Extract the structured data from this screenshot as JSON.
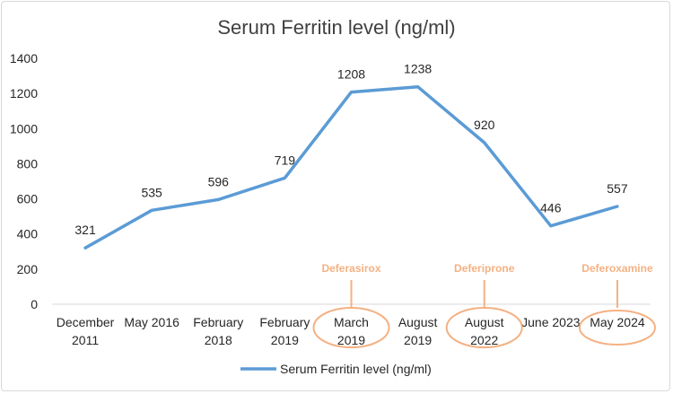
{
  "chart_data": {
    "type": "line",
    "title": "Serum Ferritin level (ng/ml)",
    "categories": [
      [
        "December",
        "2011"
      ],
      [
        "May 2016"
      ],
      [
        "February",
        "2018"
      ],
      [
        "February",
        "2019"
      ],
      [
        "March",
        "2019"
      ],
      [
        "August",
        "2019"
      ],
      [
        "August",
        "2022"
      ],
      [
        "June 2023"
      ],
      [
        "May 2024"
      ]
    ],
    "series": [
      {
        "name": "Serum Ferritin level (ng/ml)",
        "values": [
          321,
          535,
          596,
          719,
          1208,
          1238,
          920,
          446,
          557
        ],
        "color": "#5b9bd5"
      }
    ],
    "data_labels": [
      "321",
      "535",
      "596",
      "719",
      "1208",
      "1238",
      "920",
      "446",
      "557"
    ],
    "ylim": [
      0,
      1400
    ],
    "yticks": [
      0,
      200,
      400,
      600,
      800,
      1000,
      1200,
      1400
    ],
    "grid": false,
    "legend": "bottom",
    "annotations": [
      {
        "text": "Deferasirox",
        "category_index": 4
      },
      {
        "text": "Deferiprone",
        "category_index": 6
      },
      {
        "text": "Deferoxamine",
        "category_index": 8
      }
    ],
    "annotation_color": "#f4b183"
  }
}
